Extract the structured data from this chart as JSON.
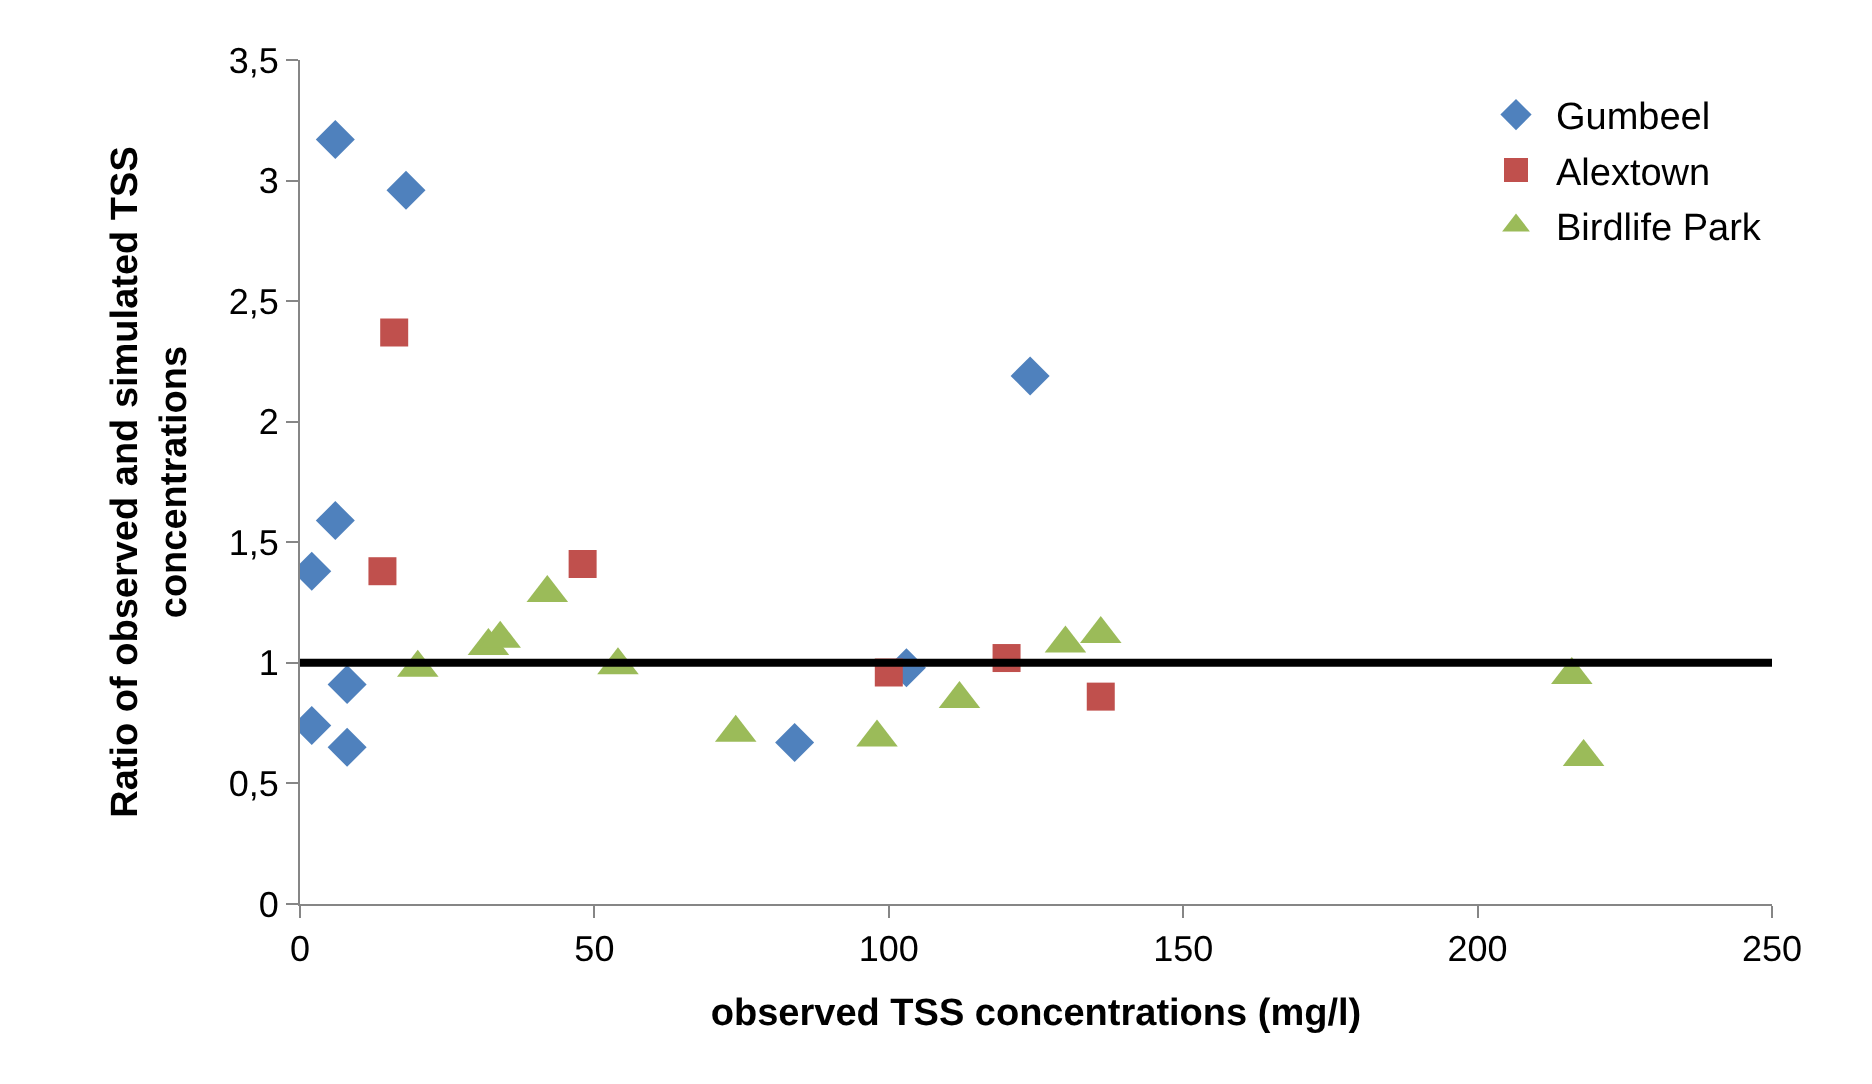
{
  "chart_data": {
    "type": "scatter",
    "xlabel": "observed TSS concentrations (mg/l)",
    "ylabel": "Ratio of observed and simulated TSS concentrations",
    "xlim": [
      0,
      250
    ],
    "xticks": [
      0,
      50,
      100,
      150,
      200,
      250
    ],
    "ylim": [
      0,
      3.5
    ],
    "yticks": [
      0,
      {
        "value": 0.5,
        "label": "0,5"
      },
      1,
      {
        "value": 1.5,
        "label": "1,5"
      },
      2,
      {
        "value": 2.5,
        "label": "2,5"
      },
      3,
      {
        "value": 3.5,
        "label": "3,5"
      }
    ],
    "grid": false,
    "legend": "top right",
    "ref_lines": [
      {
        "axis": "y",
        "value": 1,
        "color": "#000000",
        "line_style": "solid"
      }
    ],
    "series": [
      {
        "name": "Gumbeel",
        "color": "#4f81bd",
        "marker": "diamond",
        "x": [
          2,
          6,
          18,
          6,
          8,
          2,
          8,
          84,
          103,
          124
        ],
        "values": [
          1.38,
          3.17,
          2.96,
          1.59,
          0.91,
          0.74,
          0.65,
          0.67,
          0.98,
          2.19
        ]
      },
      {
        "name": "Alextown",
        "color": "#c0504d",
        "marker": "square",
        "x": [
          16,
          14,
          48,
          100,
          120,
          136
        ],
        "values": [
          2.37,
          1.38,
          1.41,
          0.96,
          1.02,
          0.86
        ]
      },
      {
        "name": "Birdlife Park",
        "color": "#9bbb59",
        "marker": "triangle",
        "x": [
          20,
          32,
          34,
          42,
          54,
          74,
          98,
          112,
          130,
          136,
          216,
          218
        ],
        "values": [
          0.98,
          1.07,
          1.1,
          1.29,
          0.99,
          0.71,
          0.69,
          0.85,
          1.08,
          1.12,
          0.95,
          0.61
        ]
      }
    ]
  }
}
